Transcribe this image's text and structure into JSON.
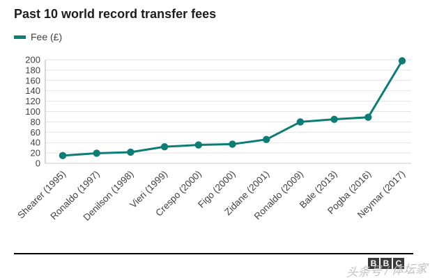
{
  "title": "Past 10 world record transfer fees",
  "legend": {
    "label": "Fee (£)"
  },
  "chart_data": {
    "type": "line",
    "title": "Past 10 world record transfer fees",
    "series_name": "Fee (£)",
    "categories": [
      "Shearer (1995)",
      "Ronaldo (1997)",
      "Denilson (1998)",
      "Vieri (1999)",
      "Crespo (2000)",
      "Figo (2000)",
      "Zidane (2001)",
      "Ronaldo (2009)",
      "Bale (2013)",
      "Pogba (2016)",
      "Neymar (2017)"
    ],
    "values": [
      15,
      19.5,
      21.5,
      32,
      35.5,
      37,
      46,
      80,
      85,
      89,
      198
    ],
    "xlabel": "",
    "ylabel": "",
    "ylim": [
      0,
      200
    ],
    "ytick_step": 20,
    "grid": "horizontal",
    "legend_position": "top-left",
    "x_label_rotation": -45
  },
  "colors": {
    "line": "#0c7c74",
    "marker": "#0c7c74",
    "gridline": "#e3e3e3",
    "zero_line": "#c9c9c9",
    "axis_line": "#b0b0b0",
    "tick_text": "#404040",
    "title_text": "#1d1d1d",
    "footer_rule": "#000000",
    "logo_bg": "#3a3a3a",
    "logo_text": "#ffffff",
    "watermark_text": "#bababa"
  },
  "footer": {
    "logo_letters": [
      "B",
      "B",
      "C"
    ],
    "watermark": "头条号 / 体坛家"
  }
}
